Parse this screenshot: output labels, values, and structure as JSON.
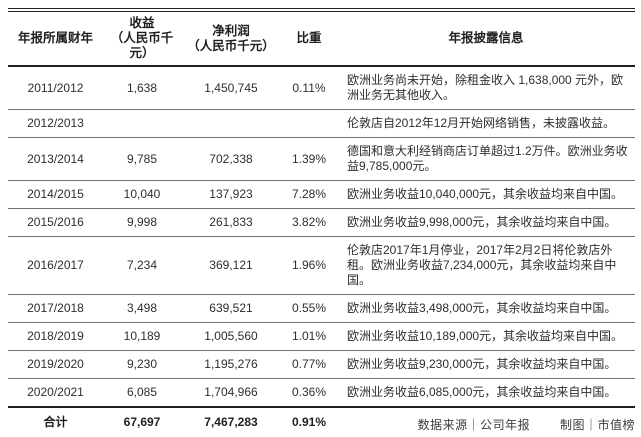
{
  "chart_data": {
    "type": "table",
    "columns": [
      {
        "label": "年报所属财年",
        "sub": ""
      },
      {
        "label": "收益",
        "sub": "（人民币千元）"
      },
      {
        "label": "净利润",
        "sub": "（人民币千元）"
      },
      {
        "label": "比重",
        "sub": ""
      },
      {
        "label": "年报披露信息",
        "sub": ""
      }
    ],
    "rows": [
      {
        "year": "2011/2012",
        "revenue": "1,638",
        "profit": "1,450,745",
        "ratio": "0.11%",
        "note": "欧洲业务尚未开始，除租金收入 1,638,000 元外，欧洲业务无其他收入。"
      },
      {
        "year": "2012/2013",
        "revenue": "",
        "profit": "",
        "ratio": "",
        "note": "伦敦店自2012年12月开始网络销售，未披露收益。"
      },
      {
        "year": "2013/2014",
        "revenue": "9,785",
        "profit": "702,338",
        "ratio": "1.39%",
        "note": "德国和意大利经销商店订单超过1.2万件。欧洲业务收益9,785,000元。"
      },
      {
        "year": "2014/2015",
        "revenue": "10,040",
        "profit": "137,923",
        "ratio": "7.28%",
        "note": "欧洲业务收益10,040,000元，其余收益均来自中国。"
      },
      {
        "year": "2015/2016",
        "revenue": "9,998",
        "profit": "261,833",
        "ratio": "3.82%",
        "note": "欧洲业务收益9,998,000元，其余收益均来自中国。"
      },
      {
        "year": "2016/2017",
        "revenue": "7,234",
        "profit": "369,121",
        "ratio": "1.96%",
        "note": "伦敦店2017年1月停业，2017年2月2日将伦敦店外租。欧洲业务收益7,234,000元，其余收益均来自中国。"
      },
      {
        "year": "2017/2018",
        "revenue": "3,498",
        "profit": "639,521",
        "ratio": "0.55%",
        "note": "欧洲业务收益3,498,000元，其余收益均来自中国。"
      },
      {
        "year": "2018/2019",
        "revenue": "10,189",
        "profit": "1,005,560",
        "ratio": "1.01%",
        "note": "欧洲业务收益10,189,000元，其余收益均来自中国。"
      },
      {
        "year": "2019/2020",
        "revenue": "9,230",
        "profit": "1,195,276",
        "ratio": "0.77%",
        "note": "欧洲业务收益9,230,000元，其余收益均来自中国。"
      },
      {
        "year": "2020/2021",
        "revenue": "6,085",
        "profit": "1,704,966",
        "ratio": "0.36%",
        "note": "欧洲业务收益6,085,000元，其余收益均来自中国。"
      }
    ],
    "total": {
      "label": "合计",
      "revenue": "67,697",
      "profit": "7,467,283",
      "ratio": "0.91%",
      "note": ""
    },
    "colors": {
      "border_dark": "#1f1f1f",
      "border_gray": "#6f6f6f",
      "text": "#2e2e2e"
    }
  },
  "footer": {
    "source": "数据来源｜公司年报",
    "credit": "制图｜市值榜"
  }
}
